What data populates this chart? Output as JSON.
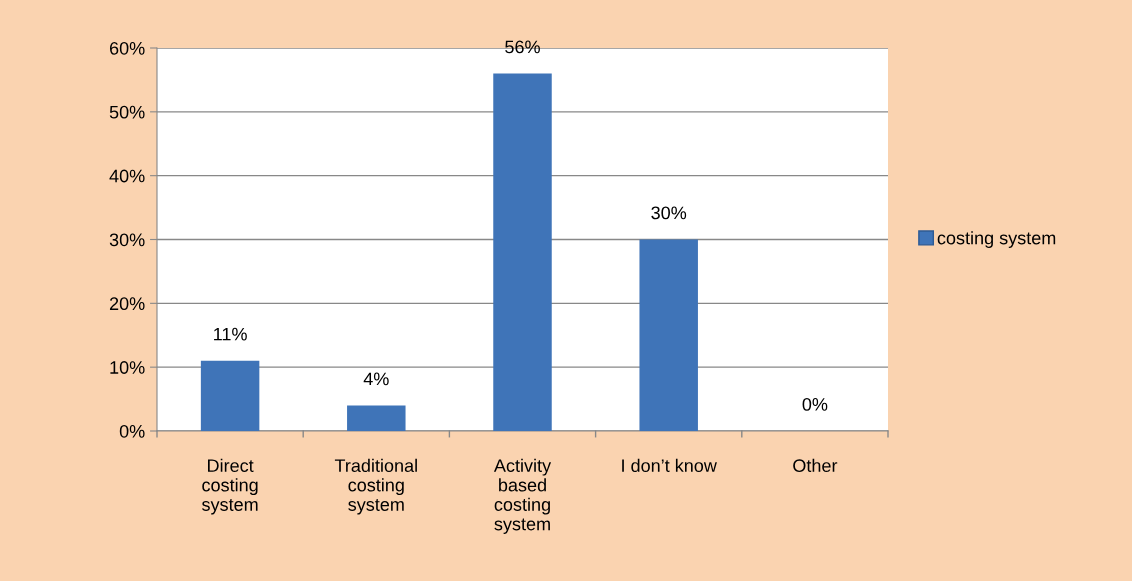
{
  "chart_data": {
    "type": "bar",
    "categories": [
      "Direct\ncosting\nsystem",
      "Traditional\ncosting\nsystem",
      "Activity\nbased\ncosting\nsystem",
      "I don’t know",
      "Other"
    ],
    "series": [
      {
        "name": "costing system",
        "color": "#3f74b8",
        "values": [
          11,
          4,
          56,
          30,
          0
        ],
        "value_labels": [
          "11%",
          "4%",
          "56%",
          "30%",
          "0%"
        ]
      }
    ],
    "ylim": [
      0,
      60
    ],
    "yticks": [
      {
        "value": 0,
        "label": "0%"
      },
      {
        "value": 10,
        "label": "10%"
      },
      {
        "value": 20,
        "label": "20%"
      },
      {
        "value": 30,
        "label": "30%"
      },
      {
        "value": 40,
        "label": "40%"
      },
      {
        "value": 50,
        "label": "50%"
      },
      {
        "value": 60,
        "label": "60%"
      }
    ],
    "grid": "y",
    "legend": "right"
  }
}
